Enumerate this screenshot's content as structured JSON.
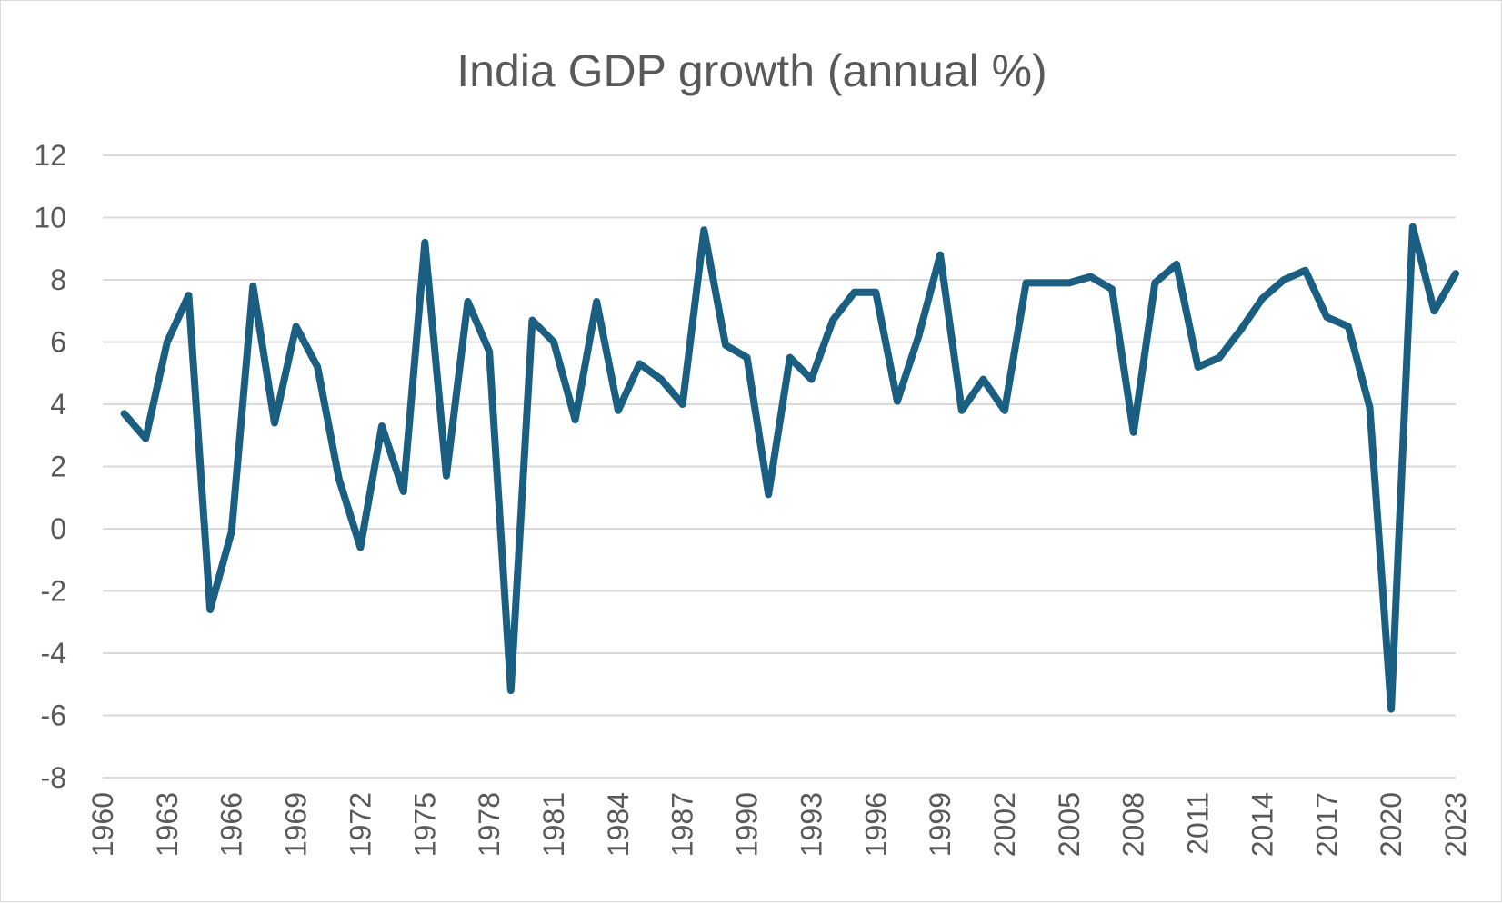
{
  "chart_data": {
    "type": "line",
    "title": "India GDP growth (annual %)",
    "xlabel": "",
    "ylabel": "",
    "ylim": [
      -8,
      12
    ],
    "yticks": [
      -8,
      -6,
      -4,
      -2,
      0,
      2,
      4,
      6,
      8,
      10,
      12
    ],
    "xlim": [
      1960,
      2023
    ],
    "xticks": [
      1960,
      1963,
      1966,
      1969,
      1972,
      1975,
      1978,
      1981,
      1984,
      1987,
      1990,
      1993,
      1996,
      1999,
      2002,
      2005,
      2008,
      2011,
      2014,
      2017,
      2020,
      2023
    ],
    "grid": true,
    "legend": "none",
    "series": [
      {
        "name": "GDP growth (annual %)",
        "color": "#1a5f82",
        "x": [
          1961,
          1962,
          1963,
          1964,
          1965,
          1966,
          1967,
          1968,
          1969,
          1970,
          1971,
          1972,
          1973,
          1974,
          1975,
          1976,
          1977,
          1978,
          1979,
          1980,
          1981,
          1982,
          1983,
          1984,
          1985,
          1986,
          1987,
          1988,
          1989,
          1990,
          1991,
          1992,
          1993,
          1994,
          1995,
          1996,
          1997,
          1998,
          1999,
          2000,
          2001,
          2002,
          2003,
          2004,
          2005,
          2006,
          2007,
          2008,
          2009,
          2010,
          2011,
          2012,
          2013,
          2014,
          2015,
          2016,
          2017,
          2018,
          2019,
          2020,
          2021,
          2022,
          2023
        ],
        "values": [
          3.7,
          2.9,
          6.0,
          7.5,
          -2.6,
          -0.1,
          7.8,
          3.4,
          6.5,
          5.2,
          1.6,
          -0.6,
          3.3,
          1.2,
          9.2,
          1.7,
          7.3,
          5.7,
          -5.2,
          6.7,
          6.0,
          3.5,
          7.3,
          3.8,
          5.3,
          4.8,
          4.0,
          9.6,
          5.9,
          5.5,
          1.1,
          5.5,
          4.8,
          6.7,
          7.6,
          7.6,
          4.1,
          6.2,
          8.8,
          3.8,
          4.8,
          3.8,
          7.9,
          7.9,
          7.9,
          8.1,
          7.7,
          3.1,
          7.9,
          8.5,
          5.2,
          5.5,
          6.4,
          7.4,
          8.0,
          8.3,
          6.8,
          6.5,
          3.9,
          -5.8,
          9.7,
          7.0,
          8.2
        ]
      }
    ]
  }
}
